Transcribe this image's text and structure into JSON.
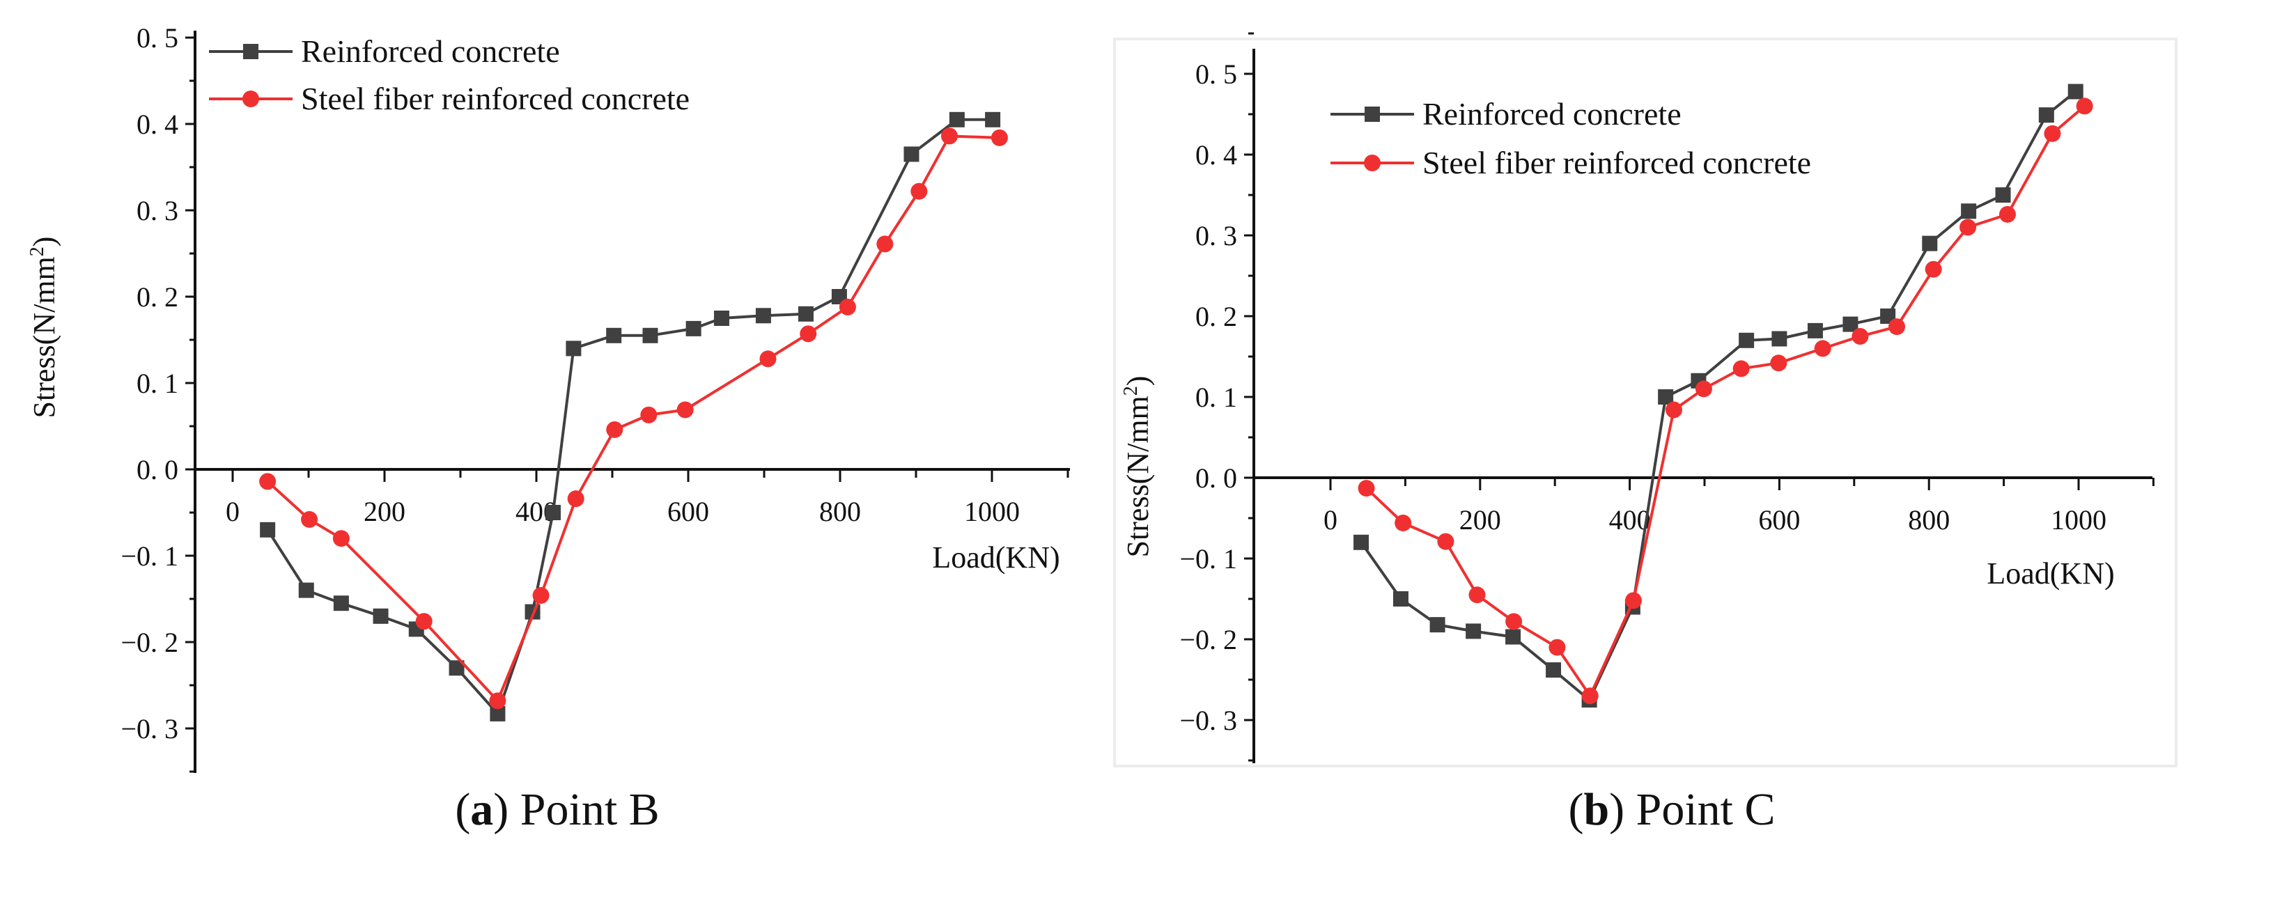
{
  "colors": {
    "rc": "#404040",
    "sfrc": "#f03030"
  },
  "chart_data": [
    {
      "type": "line",
      "caption_letter": "a",
      "caption_text": "Point B",
      "xlabel": "Load(KN)",
      "ylabel": "Stress(N/mm",
      "ylabel_sup": "2",
      "ylabel_end": ")",
      "xlim": [
        -50,
        1103
      ],
      "ylim": [
        -0.35,
        0.5
      ],
      "xticks": [
        "0",
        "200",
        "400",
        "600",
        "800",
        "1000"
      ],
      "yticks": [
        "0. 5",
        "0. 4",
        "0. 3",
        "0. 2",
        "0. 1",
        "0. 0",
        "−0. 1",
        "−0. 2",
        "−0. 3"
      ],
      "legend_position": "top-left",
      "series": [
        {
          "name": "Reinforced concrete",
          "marker": "square",
          "x": [
            46,
            97,
            143,
            195,
            242,
            295,
            349,
            395,
            422,
            449,
            502,
            550,
            607,
            644,
            699,
            755,
            799,
            894,
            954,
            1001
          ],
          "y": [
            -0.07,
            -0.14,
            -0.155,
            -0.17,
            -0.185,
            -0.23,
            -0.283,
            -0.165,
            -0.05,
            0.14,
            0.155,
            0.155,
            0.163,
            0.175,
            0.178,
            0.18,
            0.2,
            0.365,
            0.405,
            0.405
          ]
        },
        {
          "name": "Steel fiber reinforced concrete",
          "marker": "circle",
          "x": [
            46,
            101,
            143,
            252,
            349,
            406,
            452,
            503,
            548,
            596,
            705,
            758,
            810,
            859,
            904,
            944,
            1010
          ],
          "y": [
            -0.014,
            -0.058,
            -0.08,
            -0.176,
            -0.268,
            -0.146,
            -0.034,
            0.046,
            0.063,
            0.069,
            0.128,
            0.157,
            0.188,
            0.261,
            0.322,
            0.386,
            0.384
          ]
        }
      ]
    },
    {
      "type": "line",
      "caption_letter": "b",
      "caption_text": "Point C",
      "xlabel": "Load(KN)",
      "ylabel": "Stress(N/mm",
      "ylabel_sup": "2",
      "ylabel_end": ")",
      "xlim": [
        -100,
        1100
      ],
      "ylim": [
        -0.35,
        0.55
      ],
      "xticks": [
        "0",
        "200",
        "400",
        "600",
        "800",
        "1000"
      ],
      "yticks": [
        "0. 5",
        "0. 4",
        "0. 3",
        "0. 2",
        "0. 1",
        "0. 0",
        "−0. 1",
        "−0. 2",
        "−0. 3"
      ],
      "legend_position": "top-left",
      "series": [
        {
          "name": "Reinforced concrete",
          "marker": "square",
          "x": [
            41,
            94,
            143,
            191,
            244,
            298,
            346,
            404,
            448,
            492,
            556,
            600,
            648,
            695,
            745,
            801,
            853,
            899,
            957,
            996
          ],
          "y": [
            -0.08,
            -0.15,
            -0.182,
            -0.19,
            -0.197,
            -0.238,
            -0.275,
            -0.16,
            0.1,
            0.12,
            0.17,
            0.172,
            0.182,
            0.19,
            0.2,
            0.29,
            0.33,
            0.35,
            0.449,
            0.478
          ]
        },
        {
          "name": "Steel fiber reinforced concrete",
          "marker": "circle",
          "x": [
            48,
            97,
            154,
            196,
            245,
            303,
            347,
            405,
            459,
            499,
            549,
            599,
            658,
            708,
            757,
            806,
            852,
            905,
            965,
            1008
          ],
          "y": [
            -0.013,
            -0.056,
            -0.079,
            -0.145,
            -0.178,
            -0.21,
            -0.27,
            -0.152,
            0.084,
            0.11,
            0.135,
            0.142,
            0.16,
            0.175,
            0.187,
            0.258,
            0.31,
            0.326,
            0.426,
            0.46
          ]
        }
      ]
    }
  ]
}
